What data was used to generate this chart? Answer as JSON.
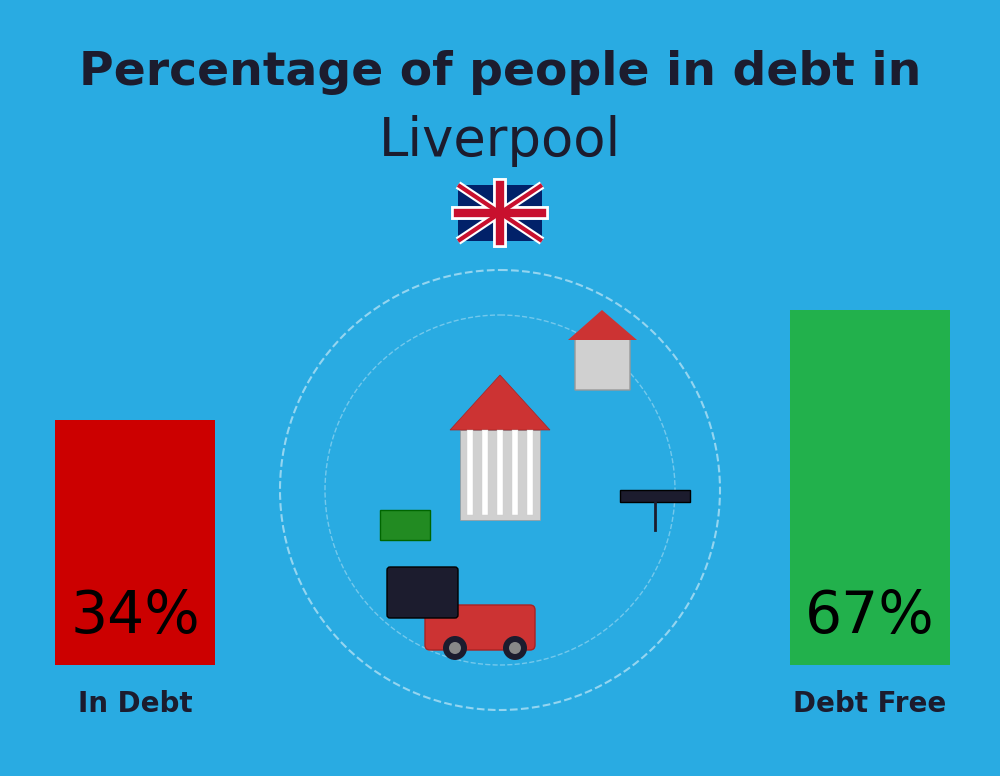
{
  "title_line1": "Percentage of people in debt in",
  "title_line2": "Liverpool",
  "flag_emoji": "🇬🇧",
  "background_color": "#29ABE2",
  "bar1_value": 34,
  "bar1_label": "34%",
  "bar1_color": "#CC0000",
  "bar1_caption": "In Debt",
  "bar2_value": 67,
  "bar2_label": "67%",
  "bar2_color": "#22B14C",
  "bar2_caption": "Debt Free",
  "title_color": "#1C1C2E",
  "label_color": "#000000",
  "caption_color": "#1C1C2E",
  "title_fontsize": 34,
  "city_fontsize": 38,
  "bar_label_fontsize": 42,
  "caption_fontsize": 20,
  "flag_fontsize": 40
}
